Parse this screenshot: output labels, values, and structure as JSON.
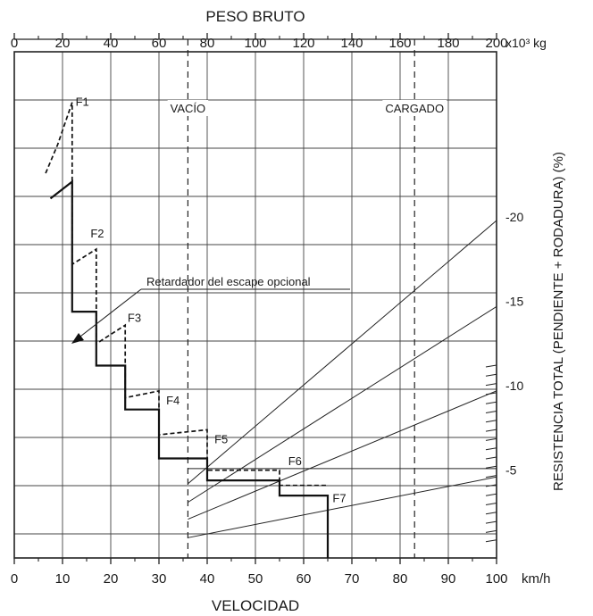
{
  "chart_data": {
    "type": "line",
    "title": "PESO BRUTO",
    "top_axis": {
      "label": "PESO BRUTO",
      "unit": "x10³ kg",
      "ticks": [
        0,
        20,
        40,
        60,
        80,
        100,
        120,
        140,
        160,
        180,
        200
      ],
      "range": [
        0,
        200
      ]
    },
    "x_axis": {
      "label": "VELOCIDAD",
      "unit": "km/h",
      "ticks": [
        0,
        10,
        20,
        30,
        40,
        50,
        60,
        70,
        80,
        90,
        100
      ],
      "range": [
        0,
        100
      ]
    },
    "right_axis": {
      "label": "RESISTENCIA TOTAL (PENDIENTE + RODADURA) (%)",
      "ticks": [
        {
          "value": 20,
          "text": "-20"
        },
        {
          "value": 15,
          "text": "-15"
        },
        {
          "value": 10,
          "text": "-10"
        },
        {
          "value": 5,
          "text": "-5"
        }
      ]
    },
    "weight_markers": [
      {
        "label": "VACÍO",
        "weight": 72
      },
      {
        "label": "CARGADO",
        "weight": 166
      }
    ],
    "annotation": "Retardador del escape opcional",
    "gear_labels": [
      {
        "text": "F1",
        "speed": 12.7,
        "force": 26.8
      },
      {
        "text": "F2",
        "speed": 15.8,
        "force": 19.0
      },
      {
        "text": "F3",
        "speed": 23.5,
        "force": 14.0
      },
      {
        "text": "F4",
        "speed": 31.5,
        "force": 9.1
      },
      {
        "text": "F5",
        "speed": 41.5,
        "force": 6.8
      },
      {
        "text": "F6",
        "speed": 56.8,
        "force": 5.5
      },
      {
        "text": "F7",
        "speed": 66.0,
        "force": 3.3
      }
    ],
    "series": [
      {
        "style": "solid",
        "x": [
          7.5,
          12,
          12,
          17,
          17,
          23,
          23,
          30,
          30,
          40,
          40,
          55,
          55,
          65,
          65
        ],
        "y": [
          21.3,
          22.3,
          14.6,
          14.6,
          11.4,
          11.4,
          8.8,
          8.8,
          5.9,
          5.9,
          4.6,
          4.6,
          3.7,
          3.7,
          0
        ]
      },
      {
        "style": "dashed",
        "x": [
          6.5,
          9,
          12,
          12,
          12,
          17,
          17,
          17,
          23,
          23,
          23,
          30,
          30,
          30,
          40,
          40,
          40,
          55,
          55,
          55,
          65
        ],
        "y": [
          22.8,
          24.5,
          27.0,
          22.3,
          17.4,
          18.3,
          14.6,
          12.7,
          13.8,
          11.4,
          9.5,
          9.9,
          8.8,
          7.3,
          7.6,
          5.9,
          5.2,
          5.2,
          4.6,
          4.3,
          4.3
        ]
      }
    ],
    "rimpull_lines": [
      {
        "x": [
          36,
          100
        ],
        "y": [
          1.2,
          4.8
        ]
      },
      {
        "x": [
          36,
          100
        ],
        "y": [
          2.3,
          9.9
        ]
      },
      {
        "x": [
          36,
          100
        ],
        "y": [
          3.3,
          14.9
        ]
      },
      {
        "x": [
          36,
          100
        ],
        "y": [
          4.4,
          20.0
        ]
      },
      {
        "x": [
          36,
          100
        ],
        "y": [
          5.3,
          5.3
        ]
      }
    ],
    "ylim": [
      0,
      30
    ],
    "grid": true
  }
}
